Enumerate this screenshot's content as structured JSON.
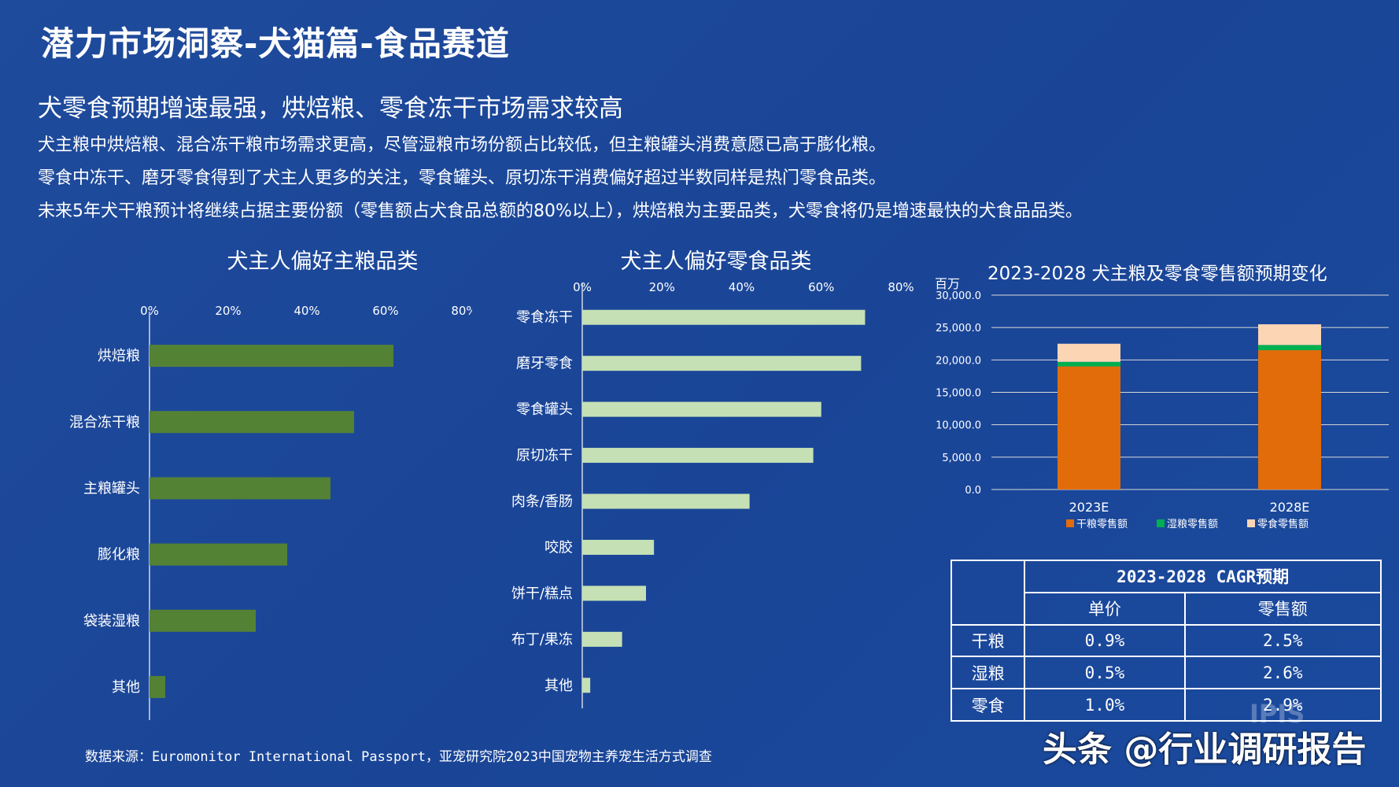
{
  "page": {
    "title": "潜力市场洞察-犬猫篇-食品赛道",
    "subtitle": "犬零食预期增速最强，烘焙粮、零食冻干市场需求较高",
    "paragraphs": [
      "犬主粮中烘焙粮、混合冻干粮市场需求更高，尽管湿粮市场份额占比较低，但主粮罐头消费意愿已高于膨化粮。",
      "零食中冻干、磨牙零食得到了犬主人更多的关注，零食罐头、原切冻干消费偏好超过半数同样是热门零食品类。",
      "未来5年犬干粮预计将继续占据主要份额（零售额占犬食品总额的80%以上），烘焙粮为主要品类，犬零食将仍是增速最快的犬食品品类。"
    ],
    "source": "数据来源：Euromonitor International Passport，亚宠研究院2023中国宠物主养宠生活方式调查",
    "watermark": "头条 @行业调研报告",
    "watermark_logo": "IPIS"
  },
  "colors": {
    "background": "#1c4899",
    "staple_bar": "#548235",
    "snack_bar": "#c5e0b4",
    "dry": "#e36c0a",
    "wet": "#00b050",
    "snack": "#fcd5b5"
  },
  "chart_data": [
    {
      "type": "bar",
      "orientation": "horizontal",
      "title": "犬主人偏好主粮品类",
      "categories": [
        "烘焙粮",
        "混合冻干粮",
        "主粮罐头",
        "膨化粮",
        "袋装湿粮",
        "其他"
      ],
      "values": [
        62,
        52,
        46,
        35,
        27,
        4
      ],
      "unit": "%",
      "xlim": [
        0,
        80
      ],
      "ticks": [
        "0%",
        "20%",
        "40%",
        "60%",
        "80%"
      ],
      "axis_position": "top"
    },
    {
      "type": "bar",
      "orientation": "horizontal",
      "title": "犬主人偏好零食品类",
      "categories": [
        "零食冻干",
        "磨牙零食",
        "零食罐头",
        "原切冻干",
        "肉条/香肠",
        "咬胶",
        "饼干/糕点",
        "布丁/果冻",
        "其他"
      ],
      "values": [
        71,
        70,
        60,
        58,
        42,
        18,
        16,
        10,
        2
      ],
      "unit": "%",
      "xlim": [
        0,
        80
      ],
      "ticks": [
        "0%",
        "20%",
        "40%",
        "60%",
        "80%"
      ],
      "axis_position": "top"
    },
    {
      "type": "bar",
      "stacked": true,
      "title": "2023-2028 犬主粮及零食零售额预期变化",
      "unit_label": "百万",
      "categories": [
        "2023E",
        "2028E"
      ],
      "series": [
        {
          "name": "干粮零售额",
          "values": [
            19000,
            21500
          ]
        },
        {
          "name": "湿粮零售额",
          "values": [
            700,
            800
          ]
        },
        {
          "name": "零食零售额",
          "values": [
            2800,
            3200
          ]
        }
      ],
      "ylim": [
        0,
        30000
      ],
      "yticks": [
        "0.0",
        "5,000.0",
        "10,000.0",
        "15,000.0",
        "20,000.0",
        "25,000.0",
        "30,000.0"
      ],
      "grid": true,
      "legend_position": "bottom"
    },
    {
      "type": "table",
      "header": "2023-2028 CAGR预期",
      "columns": [
        "单价",
        "零售额"
      ],
      "rows": [
        {
          "label": "干粮",
          "values": [
            "0.9%",
            "2.5%"
          ]
        },
        {
          "label": "湿粮",
          "values": [
            "0.5%",
            "2.6%"
          ]
        },
        {
          "label": "零食",
          "values": [
            "1.0%",
            "2.9%"
          ]
        }
      ]
    }
  ]
}
